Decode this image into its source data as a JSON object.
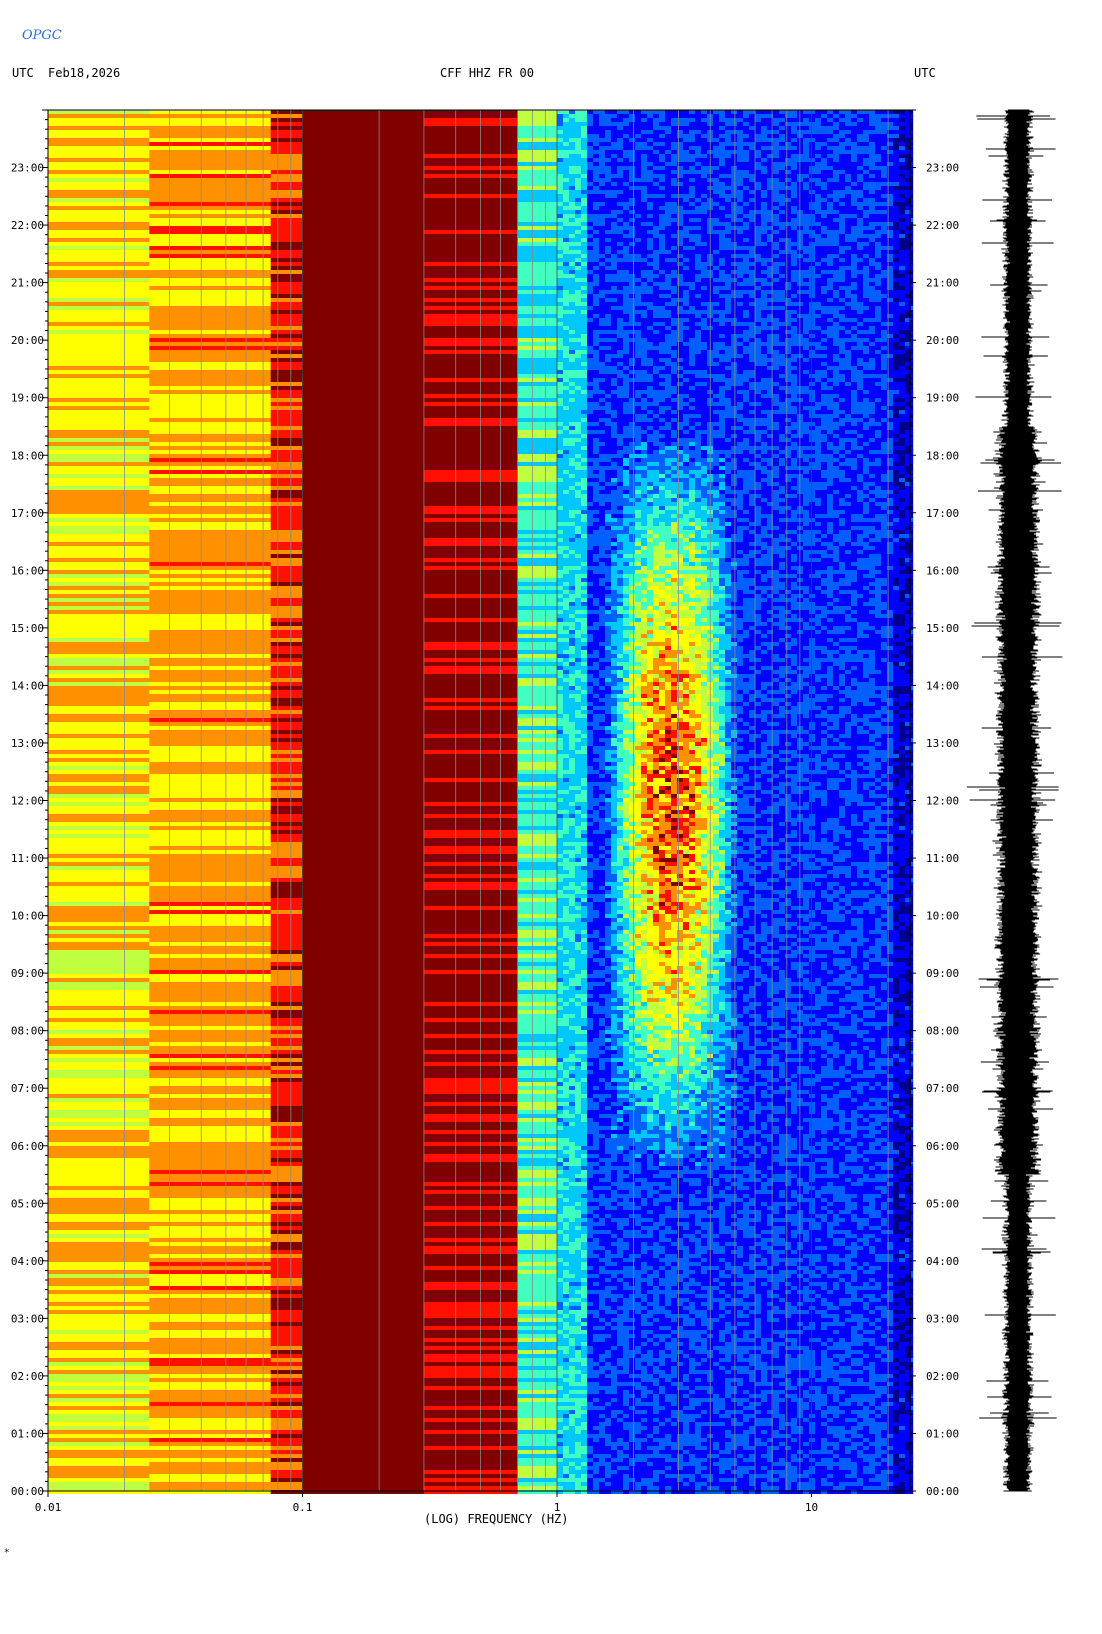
{
  "header": {
    "logo_text": "OPGC",
    "left_label": "UTC",
    "date": "Feb18,2026",
    "station": "CFF HHZ FR 00",
    "right_label": "UTC"
  },
  "footer_mark": "*",
  "chart_data": {
    "type": "heatmap",
    "title": "CFF HHZ FR 00",
    "xlabel": "(LOG) FREQUENCY (HZ)",
    "ylabel": "UTC",
    "x_scale": "log",
    "xlim": [
      0.01,
      25
    ],
    "x_ticks": [
      0.01,
      0.1,
      1,
      10
    ],
    "x_tick_labels": [
      "0.01",
      "0.1",
      "1",
      "10"
    ],
    "ylim_hours": [
      0,
      24
    ],
    "y_tick_labels": [
      "00:00",
      "01:00",
      "02:00",
      "03:00",
      "04:00",
      "05:00",
      "06:00",
      "07:00",
      "08:00",
      "09:00",
      "10:00",
      "11:00",
      "12:00",
      "13:00",
      "14:00",
      "15:00",
      "16:00",
      "17:00",
      "18:00",
      "19:00",
      "20:00",
      "21:00",
      "22:00",
      "23:00"
    ],
    "colormap": [
      "#00008c",
      "#0000ff",
      "#0060ff",
      "#00c8ff",
      "#40ffc0",
      "#c0ff40",
      "#ffff00",
      "#ff9000",
      "#ff1000",
      "#800000"
    ],
    "bands": [
      {
        "f_min": 0.01,
        "f_max": 0.025,
        "level": 0.66
      },
      {
        "f_min": 0.025,
        "f_max": 0.075,
        "level": 0.72
      },
      {
        "f_min": 0.075,
        "f_max": 0.1,
        "level": 0.85
      },
      {
        "f_min": 0.1,
        "f_max": 0.3,
        "level": 1.0
      },
      {
        "f_min": 0.3,
        "f_max": 0.7,
        "level": 0.93
      },
      {
        "f_min": 0.7,
        "f_max": 1.0,
        "level": 0.45
      },
      {
        "f_min": 1.0,
        "f_max": 25,
        "level": 0.2
      }
    ],
    "activity_zone": {
      "f_min": 1.5,
      "f_max": 5,
      "hours": [
        5.5,
        18.5
      ],
      "peak_level": 0.85
    }
  }
}
